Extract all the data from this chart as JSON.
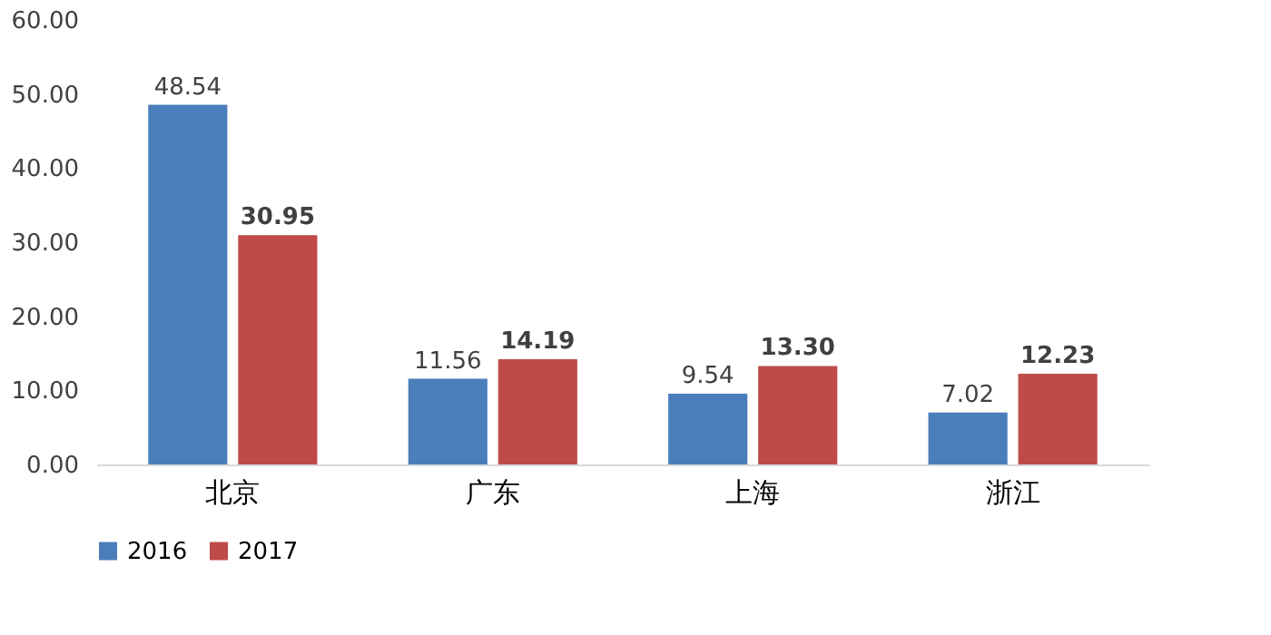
{
  "chart_data": {
    "type": "bar",
    "categories": [
      "北京",
      "广东",
      "上海",
      "浙江"
    ],
    "series": [
      {
        "name": "2016",
        "color": "#4a7ebb",
        "values": [
          48.54,
          11.56,
          9.54,
          7.02
        ]
      },
      {
        "name": "2017",
        "color": "#be4b48",
        "values": [
          30.95,
          14.19,
          13.3,
          12.23
        ]
      }
    ],
    "value_labels": [
      [
        "48.54",
        "11.56",
        "9.54",
        "7.02"
      ],
      [
        "30.95",
        "14.19",
        "13.30",
        "12.23"
      ]
    ],
    "ylim": [
      0,
      60
    ],
    "yticks": [
      {
        "value": 0,
        "label": "0.00"
      },
      {
        "value": 10,
        "label": "10.00"
      },
      {
        "value": 20,
        "label": "20.00"
      },
      {
        "value": 30,
        "label": "30.00"
      },
      {
        "value": 40,
        "label": "40.00"
      },
      {
        "value": 50,
        "label": "50.00"
      },
      {
        "value": 60,
        "label": "60.00"
      }
    ],
    "grid": false,
    "legend": "bottom"
  }
}
